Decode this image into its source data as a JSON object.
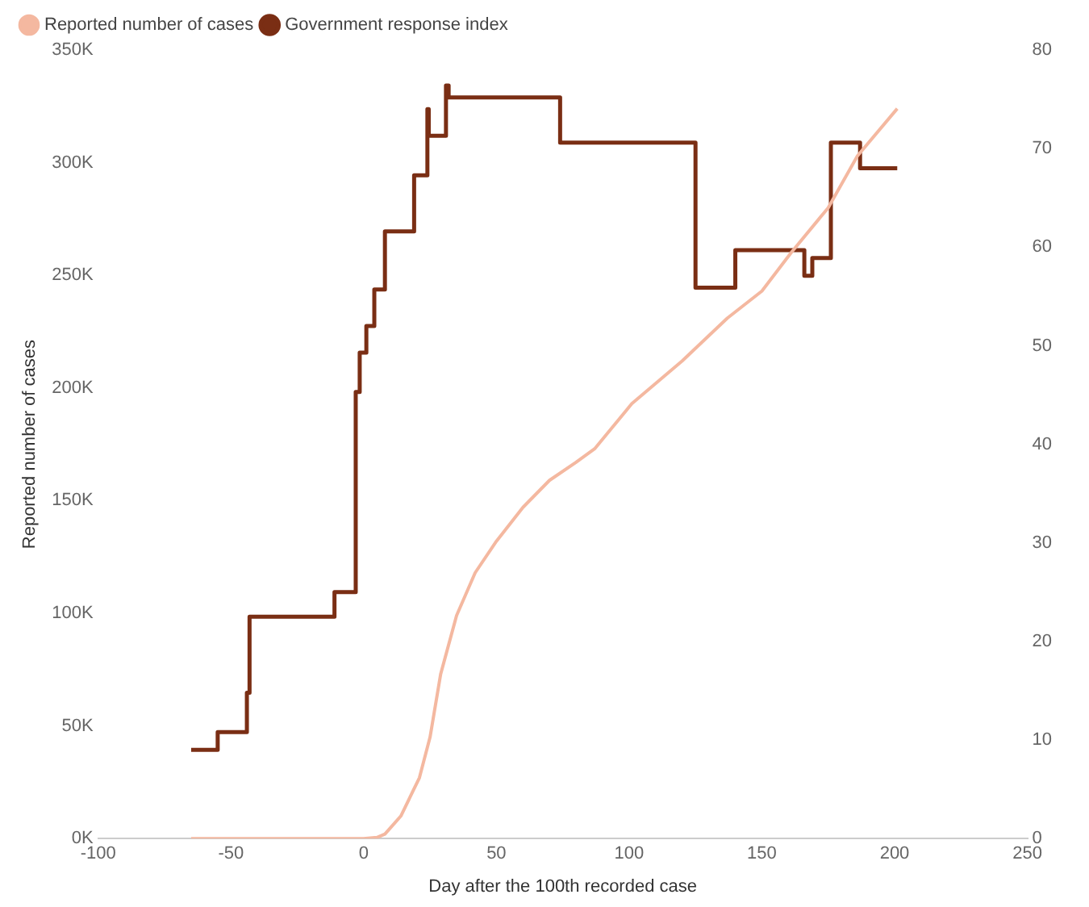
{
  "chart_data": {
    "type": "line",
    "xlabel": "Day after the 100th recorded case",
    "ylabel": "Reported number of cases",
    "xlim": [
      -100,
      250
    ],
    "xticks": [
      -100,
      -50,
      0,
      50,
      100,
      150,
      200,
      250
    ],
    "ylim": [
      0,
      350000
    ],
    "yticks": [
      {
        "value": 0,
        "label": "0K"
      },
      {
        "value": 50000,
        "label": "50K"
      },
      {
        "value": 100000,
        "label": "100K"
      },
      {
        "value": 150000,
        "label": "150K"
      },
      {
        "value": 200000,
        "label": "200K"
      },
      {
        "value": 250000,
        "label": "250K"
      },
      {
        "value": 300000,
        "label": "300K"
      },
      {
        "value": 350000,
        "label": "350K"
      }
    ],
    "y2lim": [
      0,
      80
    ],
    "y2ticks": [
      0,
      10,
      20,
      30,
      40,
      50,
      60,
      70,
      80
    ],
    "legend": "top left",
    "grid": false,
    "marker": "none",
    "series": [
      {
        "name": "Reported number of cases",
        "color": "#f4b8a0",
        "x": [
          -65,
          -30,
          0,
          5,
          8,
          14,
          21,
          25,
          29,
          35,
          42,
          50,
          60,
          70,
          80,
          87,
          101,
          120,
          137,
          150,
          161,
          175,
          186,
          201
        ],
        "values": [
          0,
          0,
          0,
          500,
          2000,
          10000,
          27000,
          45000,
          73000,
          99000,
          118000,
          132000,
          147000,
          159000,
          167000,
          173000,
          193000,
          212000,
          231000,
          243000,
          260000,
          280000,
          303000,
          324000
        ]
      },
      {
        "name": "Government response index",
        "type": "step",
        "axis": "y2",
        "color": "#7a2e14",
        "x": [
          -65,
          -55,
          -44,
          -43,
          -11,
          -3,
          -1.5,
          1,
          4,
          8,
          19,
          24,
          24.5,
          31,
          32,
          74,
          125,
          140,
          166,
          169,
          176,
          187,
          201
        ],
        "values": [
          9,
          10.8,
          14.8,
          22.5,
          25,
          45.3,
          49.3,
          52,
          55.7,
          61.6,
          67.3,
          74,
          71.3,
          76.4,
          75.2,
          70.6,
          55.9,
          59.7,
          57.1,
          58.9,
          70.6,
          68,
          68
        ]
      }
    ]
  }
}
